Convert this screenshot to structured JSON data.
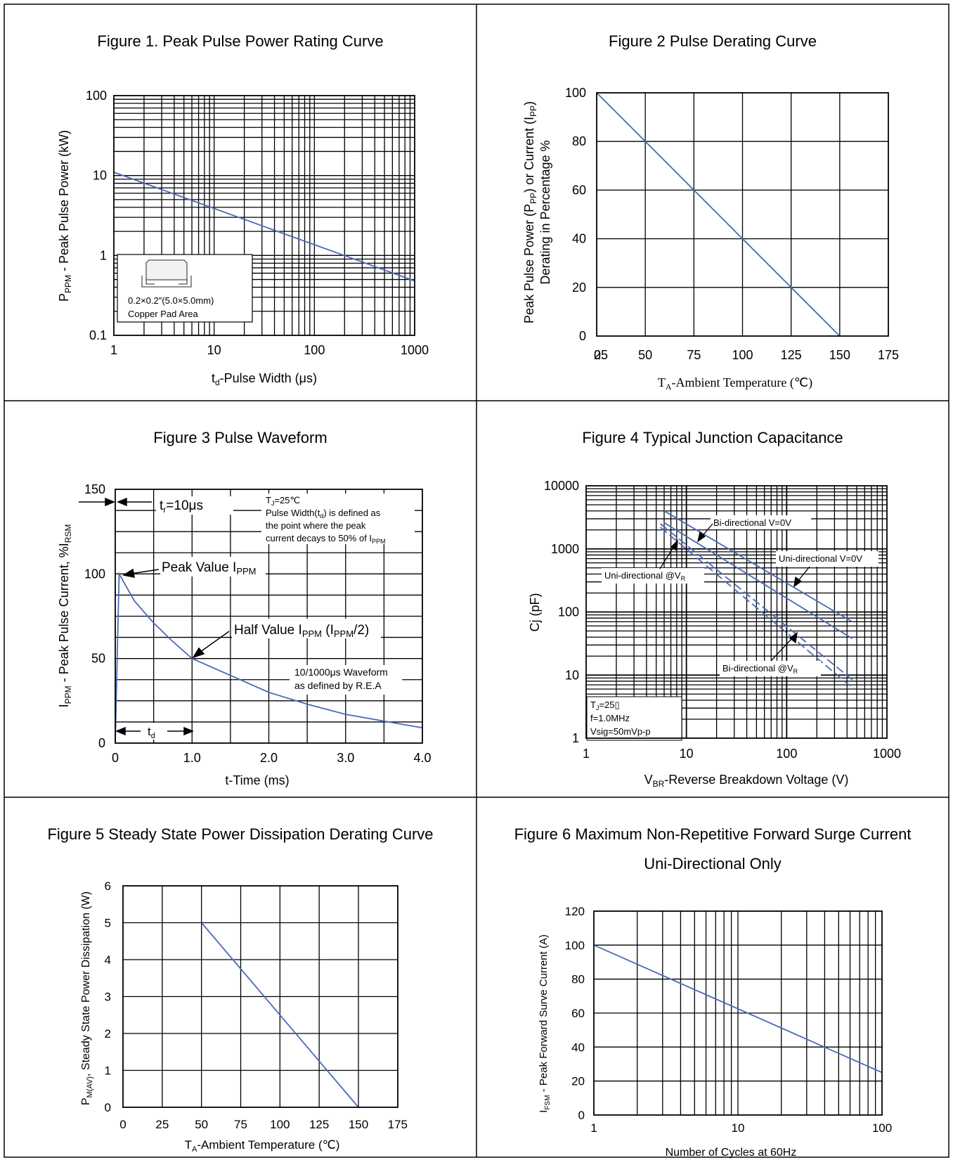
{
  "chart_data": [
    {
      "type": "line",
      "title": "Figure 1. Peak Pulse Power Rating Curve",
      "ylabel": {
        "pre": "P",
        "sub": "PPM",
        "post": " - Peak Pulse Power (kW)"
      },
      "xlabel": {
        "pre": "t",
        "sub": "d",
        "post": "-Pulse Width (μs)"
      },
      "x_scale": "log",
      "y_scale": "log",
      "xlim": [
        1,
        1000
      ],
      "ylim": [
        0.1,
        100
      ],
      "x_ticks": [
        "1",
        "10",
        "100",
        "1000"
      ],
      "y_ticks": [
        "100",
        "10",
        "1",
        "0.1"
      ],
      "series": [
        {
          "x": [
            1,
            1000
          ],
          "y": [
            11.0,
            0.48
          ]
        }
      ],
      "inset": {
        "line1": "0.2×0.2″(5.0×5.0mm)",
        "line2": "Copper Pad Area"
      }
    },
    {
      "type": "line",
      "title": "Figure 2 Pulse Derating Curve",
      "ylabel1": {
        "a": "Peak Pulse Power (P",
        "a_sub": "PP",
        "b": ") or Current (I",
        "b_sub": "PP",
        "c": ")"
      },
      "ylabel2": "Derating in Percentage %",
      "xlabel": {
        "pre": "T",
        "sub": "A",
        "post": "-Ambient Temperature (℃)"
      },
      "xlim": [
        0,
        175
      ],
      "ylim": [
        0,
        100
      ],
      "x_ticks": [
        "0",
        "25",
        "50",
        "75",
        "100",
        "125",
        "150",
        "175"
      ],
      "y_ticks": [
        "0",
        "20",
        "40",
        "60",
        "80",
        "100"
      ],
      "series": [
        {
          "x": [
            25,
            150
          ],
          "y": [
            100,
            0
          ]
        }
      ]
    },
    {
      "type": "line",
      "title": "Figure 3 Pulse Waveform",
      "ylabel": {
        "pre": "I",
        "sub": "PPM",
        "mid": " - Peak Pulse Current, %I",
        "sub2": "RSM"
      },
      "xlabel": "t-Time (ms)",
      "xlim": [
        0,
        4
      ],
      "ylim": [
        0,
        150
      ],
      "x_ticks": [
        "0",
        "1.0",
        "2.0",
        "3.0",
        "4.0"
      ],
      "y_ticks": [
        "0",
        "50",
        "100",
        "150"
      ],
      "series": [
        {
          "x": [
            0,
            0.05,
            0.25,
            0.5,
            0.75,
            1.0,
            1.5,
            2.0,
            2.5,
            3.0,
            3.5,
            4.0
          ],
          "y": [
            0,
            100,
            84,
            71,
            60,
            50,
            40,
            30,
            23,
            17,
            13,
            9
          ]
        }
      ],
      "annotations": {
        "tr": {
          "pre": "t",
          "sub": "r",
          "post": "=10μs"
        },
        "peak": {
          "pre": "Peak Value I",
          "sub": "PPM"
        },
        "half": {
          "pre": "Half Value I",
          "sub": "PPM",
          "mid": " (I",
          "sub2": "PPM",
          "post": "/2)"
        },
        "td": {
          "pre": "t",
          "sub": "d"
        },
        "note1": {
          "pre": "T",
          "sub": "J",
          "post": "=25℃"
        },
        "note2": {
          "pre": "Pulse Width(t",
          "sub": "d",
          "post": ") is defined as"
        },
        "note3": "the point where the peak",
        "note4": {
          "pre": "current decays to 50% of I",
          "sub": "PPM"
        },
        "wave1": "10/1000μs Waveform",
        "wave2": "as defined by R.E.A"
      }
    },
    {
      "type": "line",
      "title": "Figure 4 Typical Junction Capacitance",
      "ylabel": "Cj (pF)",
      "xlabel": {
        "pre": "V",
        "sub": "BR",
        "post": "-Reverse Breakdown Voltage (V)"
      },
      "x_scale": "log",
      "y_scale": "log",
      "xlim": [
        1,
        1000
      ],
      "ylim": [
        1,
        10000
      ],
      "x_ticks": [
        "1",
        "10",
        "100",
        "1000"
      ],
      "y_ticks": [
        "10000",
        "1000",
        "100",
        "10",
        "1"
      ],
      "series": [
        {
          "x": [
            6,
            450
          ],
          "y": [
            4000,
            70
          ],
          "dash": false
        },
        {
          "x": [
            6,
            450
          ],
          "y": [
            2600,
            38
          ],
          "dash": false
        },
        {
          "x": [
            5.5,
            470
          ],
          "y": [
            2500,
            8
          ],
          "dash": true
        },
        {
          "x": [
            5.5,
            470
          ],
          "y": [
            2200,
            6
          ],
          "dash": true
        }
      ],
      "labels": {
        "bi0": "Bi-directional V=0V",
        "uni0": "Uni-directional V=0V",
        "univr": {
          "pre": "Uni-directional @V",
          "sub": "R"
        },
        "bivr": {
          "pre": "Bi-directional @V",
          "sub": "R"
        },
        "cond1": {
          "pre": "T",
          "sub": "J",
          "post": "=25▯"
        },
        "cond2": "f=1.0MHz",
        "cond3": "Vsig=50mVp-p"
      }
    },
    {
      "type": "line",
      "title": "Figure 5 Steady State Power Dissipation Derating Curve",
      "ylabel": {
        "pre": "P",
        "sub": "M(AV)",
        "post": ", Steady State Power Dissipation (W)"
      },
      "xlabel": {
        "pre": "T",
        "sub": "A",
        "post": "-Ambient Temperature (℃)"
      },
      "xlim": [
        0,
        175
      ],
      "ylim": [
        0,
        6
      ],
      "x_ticks": [
        "0",
        "25",
        "50",
        "75",
        "100",
        "125",
        "150",
        "175"
      ],
      "y_ticks": [
        "0",
        "1",
        "2",
        "3",
        "4",
        "5",
        "6"
      ],
      "series": [
        {
          "x": [
            50,
            150
          ],
          "y": [
            5,
            0
          ]
        }
      ]
    },
    {
      "type": "line",
      "title": "Figure 6 Maximum Non-Repetitive Forward Surge Current",
      "subtitle": "Uni-Directional Only",
      "ylabel": {
        "pre": "I",
        "sub": "FSM",
        "post": " - Peak Forward Surve Current (A)"
      },
      "xlabel": "Number of Cycles at 60Hz",
      "x_scale": "log",
      "xlim": [
        1,
        100
      ],
      "ylim": [
        0,
        120
      ],
      "x_ticks": [
        "1",
        "10",
        "100"
      ],
      "y_ticks": [
        "0",
        "20",
        "40",
        "60",
        "80",
        "100",
        "120"
      ],
      "series": [
        {
          "x": [
            1,
            100
          ],
          "y": [
            100,
            25
          ]
        }
      ]
    }
  ]
}
